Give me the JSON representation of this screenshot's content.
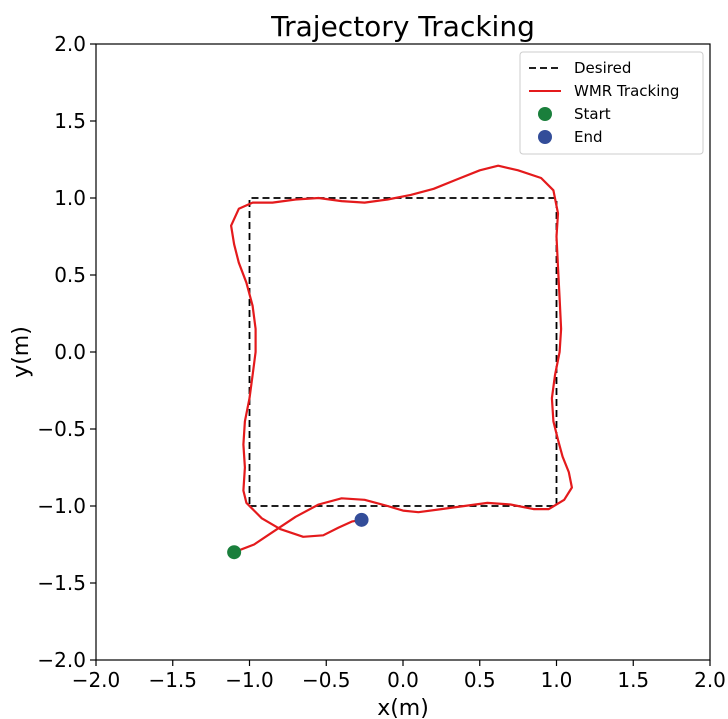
{
  "chart_data": {
    "type": "line",
    "title": "Trajectory Tracking",
    "xlabel": "x(m)",
    "ylabel": "y(m)",
    "xlim": [
      -2.0,
      2.0
    ],
    "ylim": [
      -2.0,
      2.0
    ],
    "xticks": [
      -2.0,
      -1.5,
      -1.0,
      -0.5,
      0.0,
      0.5,
      1.0,
      1.5,
      2.0
    ],
    "yticks": [
      -2.0,
      -1.5,
      -1.0,
      -0.5,
      0.0,
      0.5,
      1.0,
      1.5,
      2.0
    ],
    "xtick_labels": [
      "−2.0",
      "−1.5",
      "−1.0",
      "−0.5",
      "0.0",
      "0.5",
      "1.0",
      "1.5",
      "2.0"
    ],
    "ytick_labels": [
      "−2.0",
      "−1.5",
      "−1.0",
      "−0.5",
      "0.0",
      "0.5",
      "1.0",
      "1.5",
      "2.0"
    ],
    "grid": false,
    "legend_position": "top-right",
    "series": [
      {
        "name": "Desired",
        "style": "dashed",
        "color": "#000000",
        "points": [
          [
            -1.0,
            -1.0
          ],
          [
            1.0,
            -1.0
          ],
          [
            1.0,
            1.0
          ],
          [
            -1.0,
            1.0
          ],
          [
            -1.0,
            -1.0
          ]
        ]
      },
      {
        "name": "WMR Tracking",
        "style": "solid",
        "color": "#e41a1c",
        "points": [
          [
            -1.1,
            -1.3
          ],
          [
            -0.97,
            -1.25
          ],
          [
            -0.85,
            -1.17
          ],
          [
            -0.7,
            -1.07
          ],
          [
            -0.55,
            -0.99
          ],
          [
            -0.4,
            -0.95
          ],
          [
            -0.25,
            -0.96
          ],
          [
            -0.1,
            -1.0
          ],
          [
            0.0,
            -1.03
          ],
          [
            0.1,
            -1.04
          ],
          [
            0.25,
            -1.02
          ],
          [
            0.4,
            -1.0
          ],
          [
            0.55,
            -0.98
          ],
          [
            0.7,
            -0.99
          ],
          [
            0.85,
            -1.02
          ],
          [
            0.95,
            -1.02
          ],
          [
            1.05,
            -0.96
          ],
          [
            1.1,
            -0.88
          ],
          [
            1.08,
            -0.78
          ],
          [
            1.04,
            -0.68
          ],
          [
            1.01,
            -0.57
          ],
          [
            0.98,
            -0.45
          ],
          [
            0.97,
            -0.3
          ],
          [
            0.99,
            -0.15
          ],
          [
            1.02,
            0.0
          ],
          [
            1.03,
            0.15
          ],
          [
            1.02,
            0.35
          ],
          [
            1.01,
            0.55
          ],
          [
            1.0,
            0.75
          ],
          [
            1.01,
            0.9
          ],
          [
            0.98,
            1.05
          ],
          [
            0.9,
            1.13
          ],
          [
            0.75,
            1.18
          ],
          [
            0.62,
            1.21
          ],
          [
            0.5,
            1.18
          ],
          [
            0.35,
            1.12
          ],
          [
            0.2,
            1.06
          ],
          [
            0.05,
            1.02
          ],
          [
            -0.1,
            0.99
          ],
          [
            -0.25,
            0.97
          ],
          [
            -0.4,
            0.98
          ],
          [
            -0.55,
            1.0
          ],
          [
            -0.7,
            0.99
          ],
          [
            -0.85,
            0.97
          ],
          [
            -0.98,
            0.97
          ],
          [
            -1.07,
            0.93
          ],
          [
            -1.12,
            0.82
          ],
          [
            -1.1,
            0.7
          ],
          [
            -1.07,
            0.58
          ],
          [
            -1.02,
            0.45
          ],
          [
            -0.98,
            0.3
          ],
          [
            -0.96,
            0.15
          ],
          [
            -0.96,
            0.0
          ],
          [
            -0.98,
            -0.15
          ],
          [
            -1.0,
            -0.3
          ],
          [
            -1.03,
            -0.45
          ],
          [
            -1.04,
            -0.6
          ],
          [
            -1.03,
            -0.75
          ],
          [
            -1.04,
            -0.9
          ],
          [
            -1.02,
            -0.98
          ],
          [
            -0.92,
            -1.08
          ],
          [
            -0.8,
            -1.15
          ],
          [
            -0.65,
            -1.2
          ],
          [
            -0.52,
            -1.19
          ],
          [
            -0.42,
            -1.14
          ],
          [
            -0.33,
            -1.1
          ],
          [
            -0.27,
            -1.09
          ]
        ]
      },
      {
        "name": "Start",
        "style": "marker",
        "color": "#1a7f3c",
        "points": [
          [
            -1.1,
            -1.3
          ]
        ]
      },
      {
        "name": "End",
        "style": "marker",
        "color": "#334d99",
        "points": [
          [
            -0.27,
            -1.09
          ]
        ]
      }
    ]
  }
}
